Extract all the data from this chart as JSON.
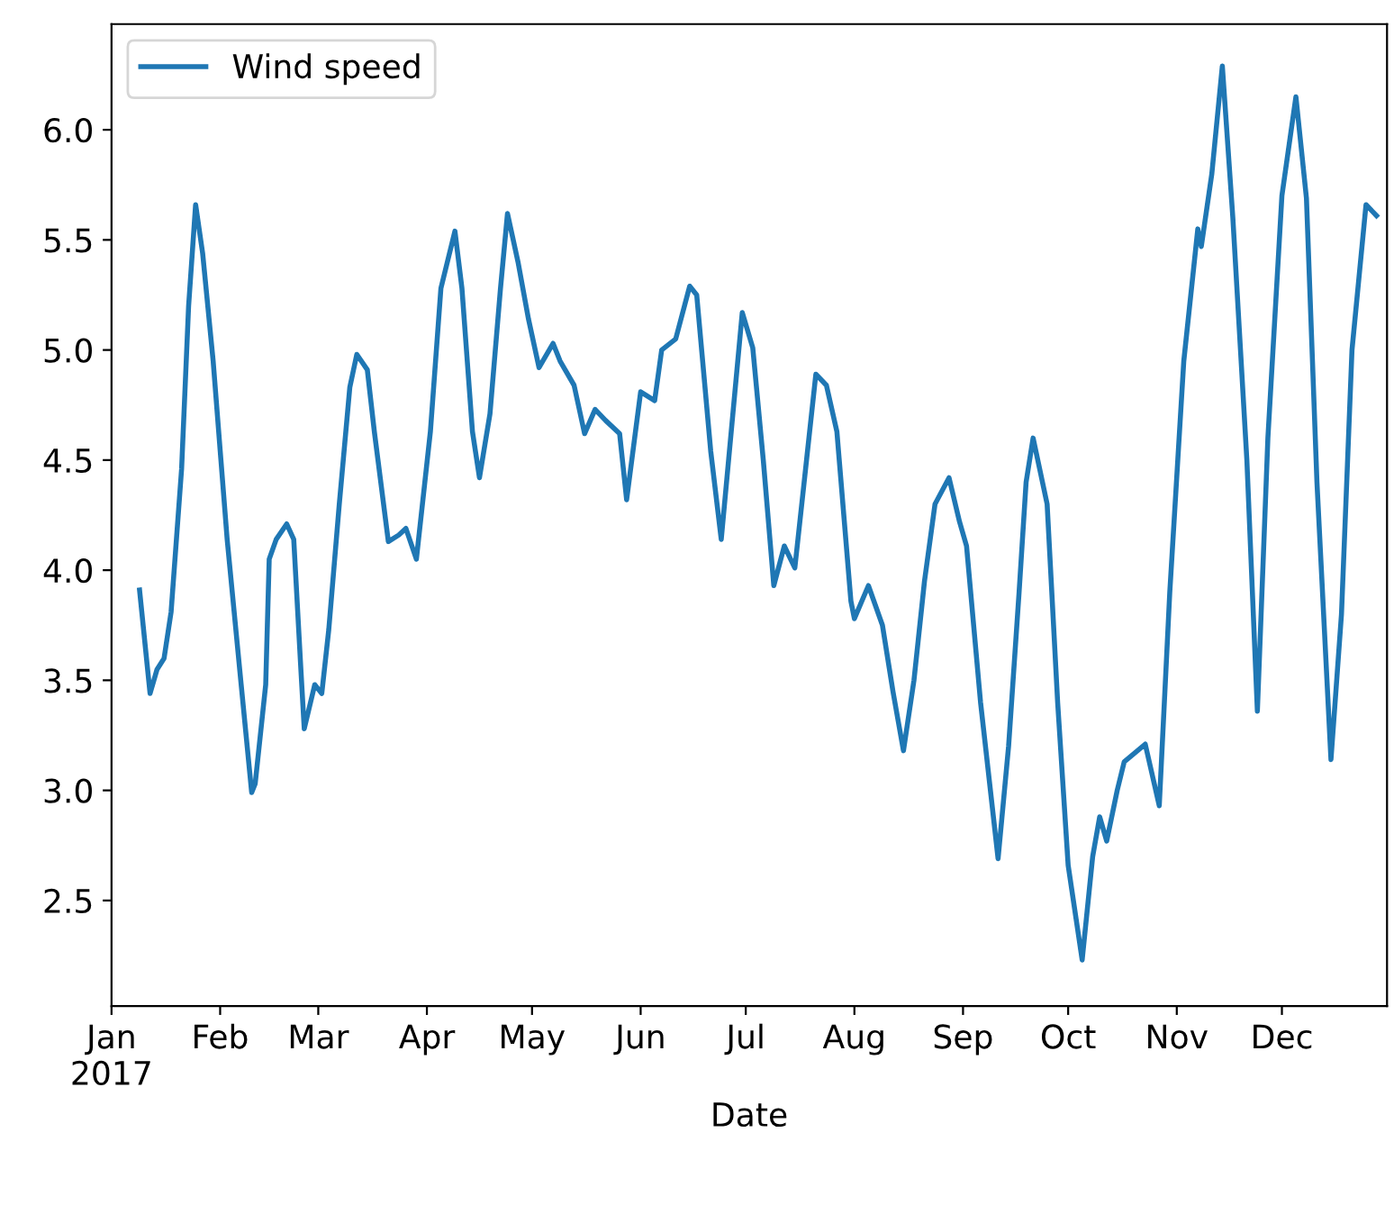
{
  "chart_data": {
    "type": "line",
    "xlabel": "Date",
    "legend": "top left",
    "grid": false,
    "xlim": [
      "2017-01-01",
      "2017-12-31"
    ],
    "ylim": [
      2.02,
      6.48
    ],
    "xticks": [
      {
        "value": "2017-01-01",
        "label": "Jan\n2017"
      },
      {
        "value": "2017-02-01",
        "label": "Feb"
      },
      {
        "value": "2017-03-01",
        "label": "Mar"
      },
      {
        "value": "2017-04-01",
        "label": "Apr"
      },
      {
        "value": "2017-05-01",
        "label": "May"
      },
      {
        "value": "2017-06-01",
        "label": "Jun"
      },
      {
        "value": "2017-07-01",
        "label": "Jul"
      },
      {
        "value": "2017-08-01",
        "label": "Aug"
      },
      {
        "value": "2017-09-01",
        "label": "Sep"
      },
      {
        "value": "2017-10-01",
        "label": "Oct"
      },
      {
        "value": "2017-11-01",
        "label": "Nov"
      },
      {
        "value": "2017-12-01",
        "label": "Dec"
      }
    ],
    "yticks": [
      2.5,
      {
        "value": 3,
        "label": "3.0"
      },
      3.5,
      {
        "value": 4,
        "label": "4.0"
      },
      4.5,
      {
        "value": 5,
        "label": "5.0"
      },
      5.5,
      {
        "value": 6,
        "label": "6.0"
      }
    ],
    "series": [
      {
        "name": "Wind speed",
        "color": "#1f77b4",
        "x": [
          "2017-01-09",
          "2017-01-12",
          "2017-01-14",
          "2017-01-16",
          "2017-01-18",
          "2017-01-21",
          "2017-01-23",
          "2017-01-25",
          "2017-01-27",
          "2017-01-30",
          "2017-02-03",
          "2017-02-07",
          "2017-02-10",
          "2017-02-11",
          "2017-02-14",
          "2017-02-15",
          "2017-02-17",
          "2017-02-20",
          "2017-02-22",
          "2017-02-24",
          "2017-02-25",
          "2017-02-28",
          "2017-03-02",
          "2017-03-04",
          "2017-03-07",
          "2017-03-10",
          "2017-03-12",
          "2017-03-15",
          "2017-03-17",
          "2017-03-21",
          "2017-03-24",
          "2017-03-26",
          "2017-03-29",
          "2017-04-02",
          "2017-04-05",
          "2017-04-09",
          "2017-04-11",
          "2017-04-14",
          "2017-04-16",
          "2017-04-19",
          "2017-04-22",
          "2017-04-24",
          "2017-04-27",
          "2017-04-30",
          "2017-05-03",
          "2017-05-07",
          "2017-05-09",
          "2017-05-13",
          "2017-05-16",
          "2017-05-19",
          "2017-05-22",
          "2017-05-26",
          "2017-05-28",
          "2017-06-01",
          "2017-06-05",
          "2017-06-07",
          "2017-06-11",
          "2017-06-15",
          "2017-06-17",
          "2017-06-21",
          "2017-06-24",
          "2017-06-30",
          "2017-07-03",
          "2017-07-06",
          "2017-07-09",
          "2017-07-12",
          "2017-07-15",
          "2017-07-21",
          "2017-07-24",
          "2017-07-27",
          "2017-07-31",
          "2017-08-01",
          "2017-08-05",
          "2017-08-09",
          "2017-08-12",
          "2017-08-15",
          "2017-08-18",
          "2017-08-21",
          "2017-08-24",
          "2017-08-28",
          "2017-08-31",
          "2017-09-02",
          "2017-09-06",
          "2017-09-11",
          "2017-09-14",
          "2017-09-17",
          "2017-09-19",
          "2017-09-21",
          "2017-09-25",
          "2017-09-28",
          "2017-10-01",
          "2017-10-05",
          "2017-10-08",
          "2017-10-10",
          "2017-10-12",
          "2017-10-15",
          "2017-10-17",
          "2017-10-23",
          "2017-10-27",
          "2017-10-30",
          "2017-11-03",
          "2017-11-07",
          "2017-11-08",
          "2017-11-11",
          "2017-11-14",
          "2017-11-17",
          "2017-11-21",
          "2017-11-24",
          "2017-11-27",
          "2017-12-01",
          "2017-12-05",
          "2017-12-08",
          "2017-12-11",
          "2017-12-15",
          "2017-12-18",
          "2017-12-21",
          "2017-12-25",
          "2017-12-28"
        ],
        "values": [
          3.91,
          3.44,
          3.55,
          3.6,
          3.81,
          4.46,
          5.2,
          5.66,
          5.44,
          4.95,
          4.14,
          3.48,
          2.99,
          3.03,
          3.48,
          4.05,
          4.14,
          4.21,
          4.14,
          3.56,
          3.28,
          3.48,
          3.44,
          3.73,
          4.3,
          4.83,
          4.98,
          4.91,
          4.63,
          4.13,
          4.16,
          4.19,
          4.05,
          4.63,
          5.28,
          5.54,
          5.28,
          4.63,
          4.42,
          4.71,
          5.28,
          5.62,
          5.4,
          5.14,
          4.92,
          5.03,
          4.95,
          4.84,
          4.62,
          4.73,
          4.68,
          4.62,
          4.32,
          4.81,
          4.77,
          5.0,
          5.05,
          5.29,
          5.25,
          4.54,
          4.14,
          5.17,
          5.01,
          4.5,
          3.93,
          4.11,
          4.01,
          4.89,
          4.84,
          4.63,
          3.86,
          3.78,
          3.93,
          3.75,
          3.45,
          3.18,
          3.5,
          3.95,
          4.3,
          4.42,
          4.22,
          4.11,
          3.4,
          2.69,
          3.2,
          3.9,
          4.4,
          4.6,
          4.3,
          3.4,
          2.66,
          2.23,
          2.7,
          2.88,
          2.77,
          3.0,
          3.13,
          3.21,
          2.93,
          3.9,
          4.95,
          5.55,
          5.47,
          5.8,
          6.29,
          5.6,
          4.5,
          3.36,
          4.6,
          5.7,
          6.15,
          5.69,
          4.4,
          3.14,
          3.8,
          5.0,
          5.66,
          5.61
        ]
      }
    ]
  }
}
